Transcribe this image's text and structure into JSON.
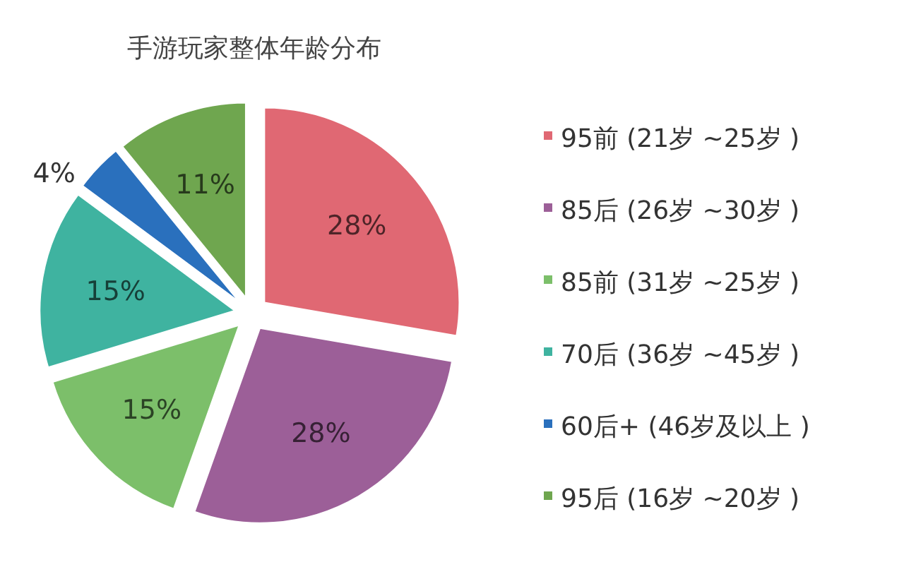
{
  "chart_data": {
    "type": "pie",
    "title": "手游玩家整体年龄分布",
    "categories": [
      "95前 (21岁 ~25岁 )",
      "85后 (26岁 ~30岁 )",
      "85前 (31岁 ~25岁 )",
      "70后 (36岁 ~45岁 )",
      "60后+  (46岁及以上 )",
      "95后 (16岁 ~20岁 )"
    ],
    "values": [
      28,
      28,
      15,
      15,
      4,
      11
    ],
    "value_labels": [
      "28%",
      "28%",
      "15%",
      "15%",
      "4%",
      "11%"
    ],
    "colors": [
      "#e06873",
      "#9c5f98",
      "#7cbf6a",
      "#3fb3a0",
      "#2a70bd",
      "#6fa64f"
    ],
    "legend": "right"
  }
}
